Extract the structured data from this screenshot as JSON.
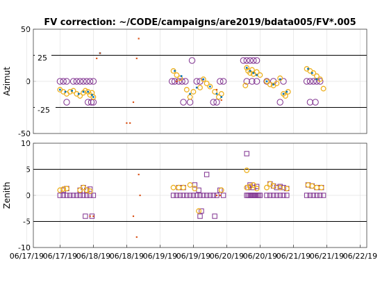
{
  "chart_data": [
    {
      "type": "scatter",
      "title": "FV correction: ~/CODE/campaigns/are2019/bdata005/FV*.005",
      "ylabel": "Azimut",
      "ylim": [
        -50,
        50
      ],
      "yticks": [
        "50",
        "0",
        "-50"
      ],
      "yticks_values": [
        50,
        0,
        -50
      ],
      "grid": true,
      "ref_lines": [
        25,
        -25
      ],
      "annotations": [
        {
          "text": "25",
          "y": 25
        },
        {
          "text": "-25",
          "y": -25
        }
      ],
      "colors": {
        "circle": "#7E2F8E",
        "ring": "#EDB120",
        "dot": "#0072BD",
        "orange": "#D95319",
        "line": "#000000"
      },
      "series": [
        {
          "marker": "circle",
          "x": [
            0.0,
            0.05,
            0.1,
            0.2,
            0.25,
            0.3,
            0.35,
            0.4,
            0.45,
            0.5,
            0.1,
            0.42,
            0.47,
            0.5,
            1.68,
            1.72,
            1.78,
            1.83,
            1.88,
            1.98,
            2.05,
            2.1,
            1.85,
            1.95,
            2.3,
            2.35,
            2.4,
            2.45,
            2.75,
            2.8,
            2.85,
            2.9,
            2.95,
            2.8,
            2.88,
            2.95,
            3.1,
            3.2,
            3.35,
            3.3,
            3.7,
            3.75,
            3.8,
            3.85,
            3.9,
            3.75,
            3.83
          ],
          "y": [
            0,
            0,
            0,
            0,
            0,
            0,
            0,
            0,
            0,
            0,
            -20,
            -20,
            -20,
            -20,
            0,
            0,
            0,
            0,
            0,
            20,
            0,
            0,
            -20,
            -20,
            -20,
            -20,
            0,
            0,
            20,
            20,
            20,
            20,
            20,
            0,
            0,
            0,
            0,
            0,
            0,
            -20,
            0,
            0,
            0,
            0,
            0,
            -20,
            -20
          ]
        },
        {
          "marker": "ring",
          "x": [
            0.0,
            0.05,
            0.1,
            0.15,
            0.2,
            0.25,
            0.3,
            0.35,
            0.38,
            0.42,
            0.45,
            0.48,
            0.5,
            1.7,
            1.75,
            1.8,
            1.9,
            1.95,
            2.0,
            2.1,
            2.15,
            2.2,
            2.25,
            2.32,
            2.38,
            2.42,
            2.8,
            2.82,
            2.85,
            2.88,
            2.9,
            2.95,
            3.0,
            3.1,
            3.15,
            3.2,
            3.25,
            3.3,
            3.35,
            3.38,
            3.42,
            3.7,
            3.75,
            3.8,
            3.85,
            3.9,
            3.95,
            2.78
          ],
          "y": [
            -8,
            -10,
            -12,
            -10,
            -9,
            -12,
            -14,
            -11,
            -9,
            -10,
            -13,
            -11,
            -15,
            10,
            6,
            3,
            -8,
            -15,
            -10,
            -6,
            2,
            -2,
            -5,
            -10,
            -15,
            -12,
            13,
            10,
            8,
            11,
            7,
            9,
            6,
            0,
            -3,
            -4,
            -2,
            3,
            -12,
            -14,
            -10,
            12,
            10,
            8,
            5,
            2,
            -7,
            -4
          ]
        },
        {
          "marker": "dot",
          "x": [
            0.0,
            0.08,
            0.18,
            0.28,
            0.35,
            0.42,
            0.48,
            0.5,
            1.72,
            1.82,
            1.95,
            2.05,
            2.15,
            2.25,
            2.35,
            2.42,
            2.8,
            2.85,
            2.9,
            2.95,
            3.1,
            3.2,
            3.3,
            3.35,
            3.4,
            3.72,
            3.78,
            3.85,
            0.6
          ],
          "y": [
            -8,
            -10,
            -9,
            -12,
            -10,
            -10,
            -13,
            -15,
            10,
            5,
            -12,
            -6,
            2,
            -5,
            -12,
            -15,
            13,
            10,
            8,
            6,
            0,
            -3,
            2,
            -12,
            -10,
            12,
            8,
            2,
            27
          ]
        },
        {
          "marker": "orange",
          "x": [
            0.55,
            0.6,
            1.0,
            1.05,
            1.1,
            1.15,
            1.18,
            1.75,
            2.35,
            2.42
          ],
          "y": [
            22,
            27,
            -40,
            -40,
            -20,
            22,
            41,
            0,
            -8,
            -18
          ]
        }
      ]
    },
    {
      "type": "scatter",
      "ylabel": "Zenith",
      "ylim": [
        -10,
        10
      ],
      "yticks": [
        "10",
        "5",
        "0",
        "-5",
        "-10"
      ],
      "yticks_values": [
        10,
        5,
        0,
        -5,
        -10
      ],
      "xticks": [
        "06/17/19",
        "06/17/19",
        "06/18/19",
        "06/18/19",
        "06/19/19",
        "06/19/19",
        "06/20/19",
        "06/20/19",
        "06/21/19",
        "06/21/19",
        "06/22/19"
      ],
      "xlim": [
        -0.4,
        4.6
      ],
      "grid": true,
      "ref_lines": [
        5,
        -5
      ],
      "series": [
        {
          "marker": "square",
          "x": [
            0.0,
            0.05,
            0.1,
            0.15,
            0.2,
            0.25,
            0.3,
            0.35,
            0.4,
            0.45,
            0.5,
            0.05,
            0.1,
            0.3,
            0.35,
            0.4,
            0.45,
            0.38,
            0.48,
            1.7,
            1.75,
            1.8,
            1.85,
            1.9,
            1.95,
            2.0,
            2.05,
            2.1,
            2.15,
            2.2,
            1.78,
            1.85,
            2.02,
            2.08,
            2.12,
            2.25,
            2.3,
            2.35,
            2.4,
            2.45,
            2.2,
            2.32,
            2.1,
            2.8,
            2.82,
            2.84,
            2.86,
            2.88,
            2.9,
            2.92,
            2.94,
            2.96,
            2.98,
            3.0,
            3.1,
            3.15,
            3.2,
            3.25,
            3.3,
            3.35,
            3.4,
            2.82,
            2.85,
            2.9,
            2.95,
            3.15,
            3.2,
            3.25,
            3.3,
            3.35,
            3.4,
            2.8,
            3.7,
            3.75,
            3.8,
            3.85,
            3.9,
            3.95,
            3.72,
            3.78,
            3.85,
            3.92
          ],
          "y": [
            0,
            0,
            0,
            0,
            0,
            0,
            0,
            0,
            0,
            0,
            0,
            1,
            1.3,
            1,
            1.5,
            1,
            1.2,
            -4,
            -4,
            0,
            0,
            0,
            0,
            0,
            0,
            0,
            0,
            0,
            0,
            0,
            1.5,
            1.5,
            2,
            1,
            -3,
            0,
            0,
            0,
            1,
            0,
            4,
            -4,
            -4,
            0,
            0,
            0,
            0,
            0,
            0,
            0,
            0,
            0,
            0,
            0,
            0,
            0,
            0,
            0,
            0,
            0,
            0,
            1.5,
            2,
            1.5,
            1.7,
            2.2,
            1.8,
            1.5,
            1.7,
            1.5,
            1.3,
            8,
            0,
            0,
            0,
            0,
            0,
            0,
            2,
            1.8,
            1.5,
            1.5
          ]
        },
        {
          "marker": "ring",
          "x": [
            0.0,
            0.05,
            0.1,
            0.3,
            0.35,
            0.4,
            0.45,
            1.7,
            1.78,
            1.85,
            1.95,
            2.02,
            2.08,
            2.42,
            2.8,
            2.85,
            2.9,
            2.95,
            3.1,
            3.15,
            3.2,
            3.3,
            3.4,
            3.72,
            3.78,
            3.85,
            3.92,
            2.8
          ],
          "y": [
            1,
            1.2,
            1.3,
            1,
            1.5,
            1,
            0.8,
            1.5,
            1.5,
            1.5,
            2,
            1.3,
            -3,
            1,
            1.5,
            1.7,
            2,
            1.3,
            1.5,
            2.2,
            1.8,
            1.5,
            1.3,
            2,
            1.8,
            1.5,
            1.5,
            4.8
          ]
        },
        {
          "marker": "orange",
          "x": [
            0.45,
            0.5,
            1.1,
            1.15,
            1.18,
            1.2,
            2.35,
            2.4
          ],
          "y": [
            -4,
            -4,
            -4,
            -8,
            4,
            0,
            0,
            0
          ]
        }
      ]
    }
  ]
}
